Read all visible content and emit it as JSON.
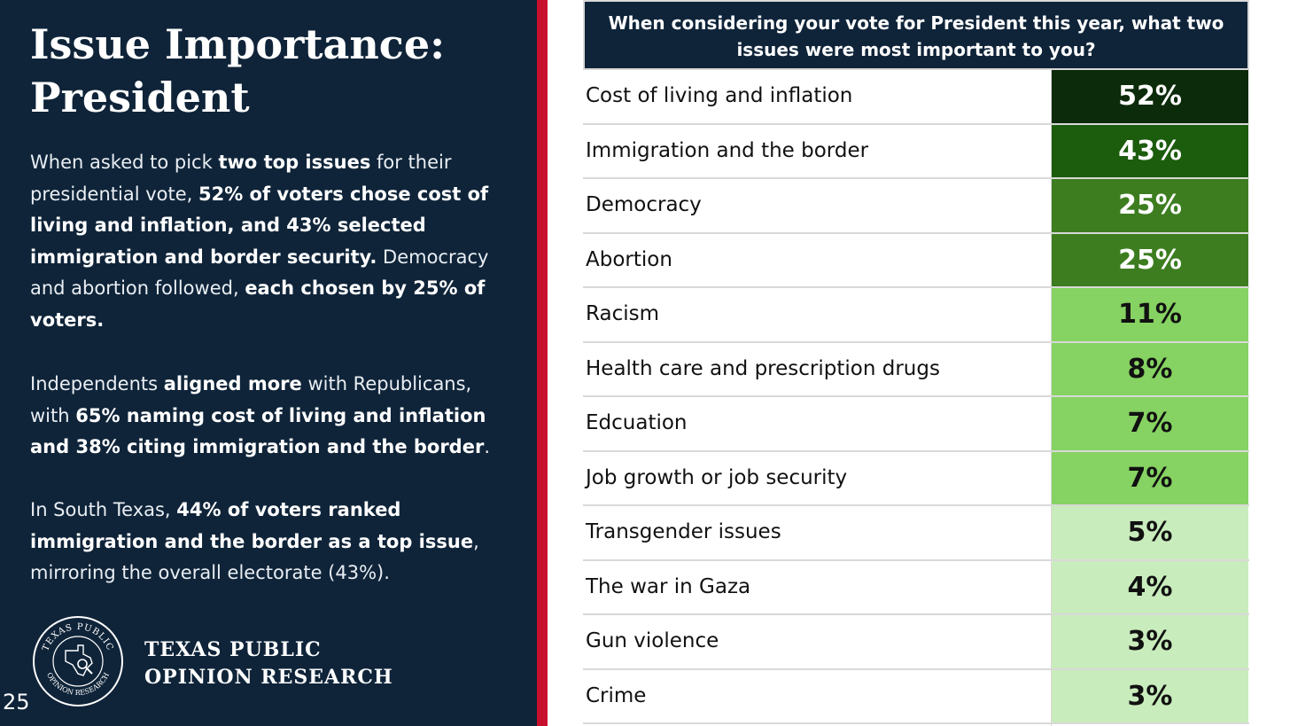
{
  "slide": {
    "title_line1": "Issue Importance:",
    "title_line2": "President",
    "page_number": "25",
    "org_line1": "TEXAS PUBLIC",
    "org_line2": "OPINION RESEARCH",
    "logo_text": "TEXAS PUBLIC OPINION RESEARCH"
  },
  "paragraphs": [
    [
      {
        "t": "When asked to pick ",
        "b": false
      },
      {
        "t": "two top issues",
        "b": true
      },
      {
        "t": " for their presidential vote, ",
        "b": false
      },
      {
        "t": "52% of voters chose cost of living and inflation, and 43% selected immigration and border security.",
        "b": true
      },
      {
        "t": " Democracy and abortion followed, ",
        "b": false
      },
      {
        "t": "each chosen by 25% of voters.",
        "b": true
      }
    ],
    [
      {
        "t": "Independents  ",
        "b": false
      },
      {
        "t": "aligned more",
        "b": true
      },
      {
        "t": " with Republicans, with ",
        "b": false
      },
      {
        "t": "65% naming cost of living and inflation and 38% citing immigration and the border",
        "b": true
      },
      {
        "t": ".",
        "b": false
      }
    ],
    [
      {
        "t": "In South Texas, ",
        "b": false
      },
      {
        "t": "44% of voters ranked immigration and the border as a top issue",
        "b": true
      },
      {
        "t": ", mirroring the overall electorate (43%).",
        "b": false
      }
    ]
  ],
  "chart_data": {
    "type": "table",
    "title": "When considering your vote for President this year, what two issues were  most important to you?",
    "value_format": "percent",
    "categories": [
      "Cost of living and inflation",
      "Immigration and the border",
      "Democracy",
      "Abortion",
      "Racism",
      "Health care and prescription drugs",
      "Edcuation",
      "Job growth or job security",
      "Transgender issues",
      "The war in Gaza",
      "Gun violence",
      "Crime"
    ],
    "values": [
      52,
      43,
      25,
      25,
      11,
      8,
      7,
      7,
      5,
      4,
      3,
      3
    ],
    "value_labels": [
      "52%",
      "43%",
      "25%",
      "25%",
      "11%",
      "8%",
      "7%",
      "7%",
      "5%",
      "4%",
      "3%",
      "3%"
    ],
    "cell_colors": [
      "#0c2b0a",
      "#1c5c0d",
      "#3d7d20",
      "#3d7d20",
      "#86d262",
      "#86d262",
      "#86d262",
      "#86d262",
      "#c9ecbc",
      "#c9ecbc",
      "#c9ecbc",
      "#c9ecbc"
    ],
    "text_colors": [
      "#ffffff",
      "#ffffff",
      "#ffffff",
      "#ffffff",
      "#111111",
      "#111111",
      "#111111",
      "#111111",
      "#111111",
      "#111111",
      "#111111",
      "#111111"
    ]
  },
  "colors": {
    "navy": "#0f2439",
    "red_accent": "#c8102e",
    "divider": "#d9d9d9"
  }
}
